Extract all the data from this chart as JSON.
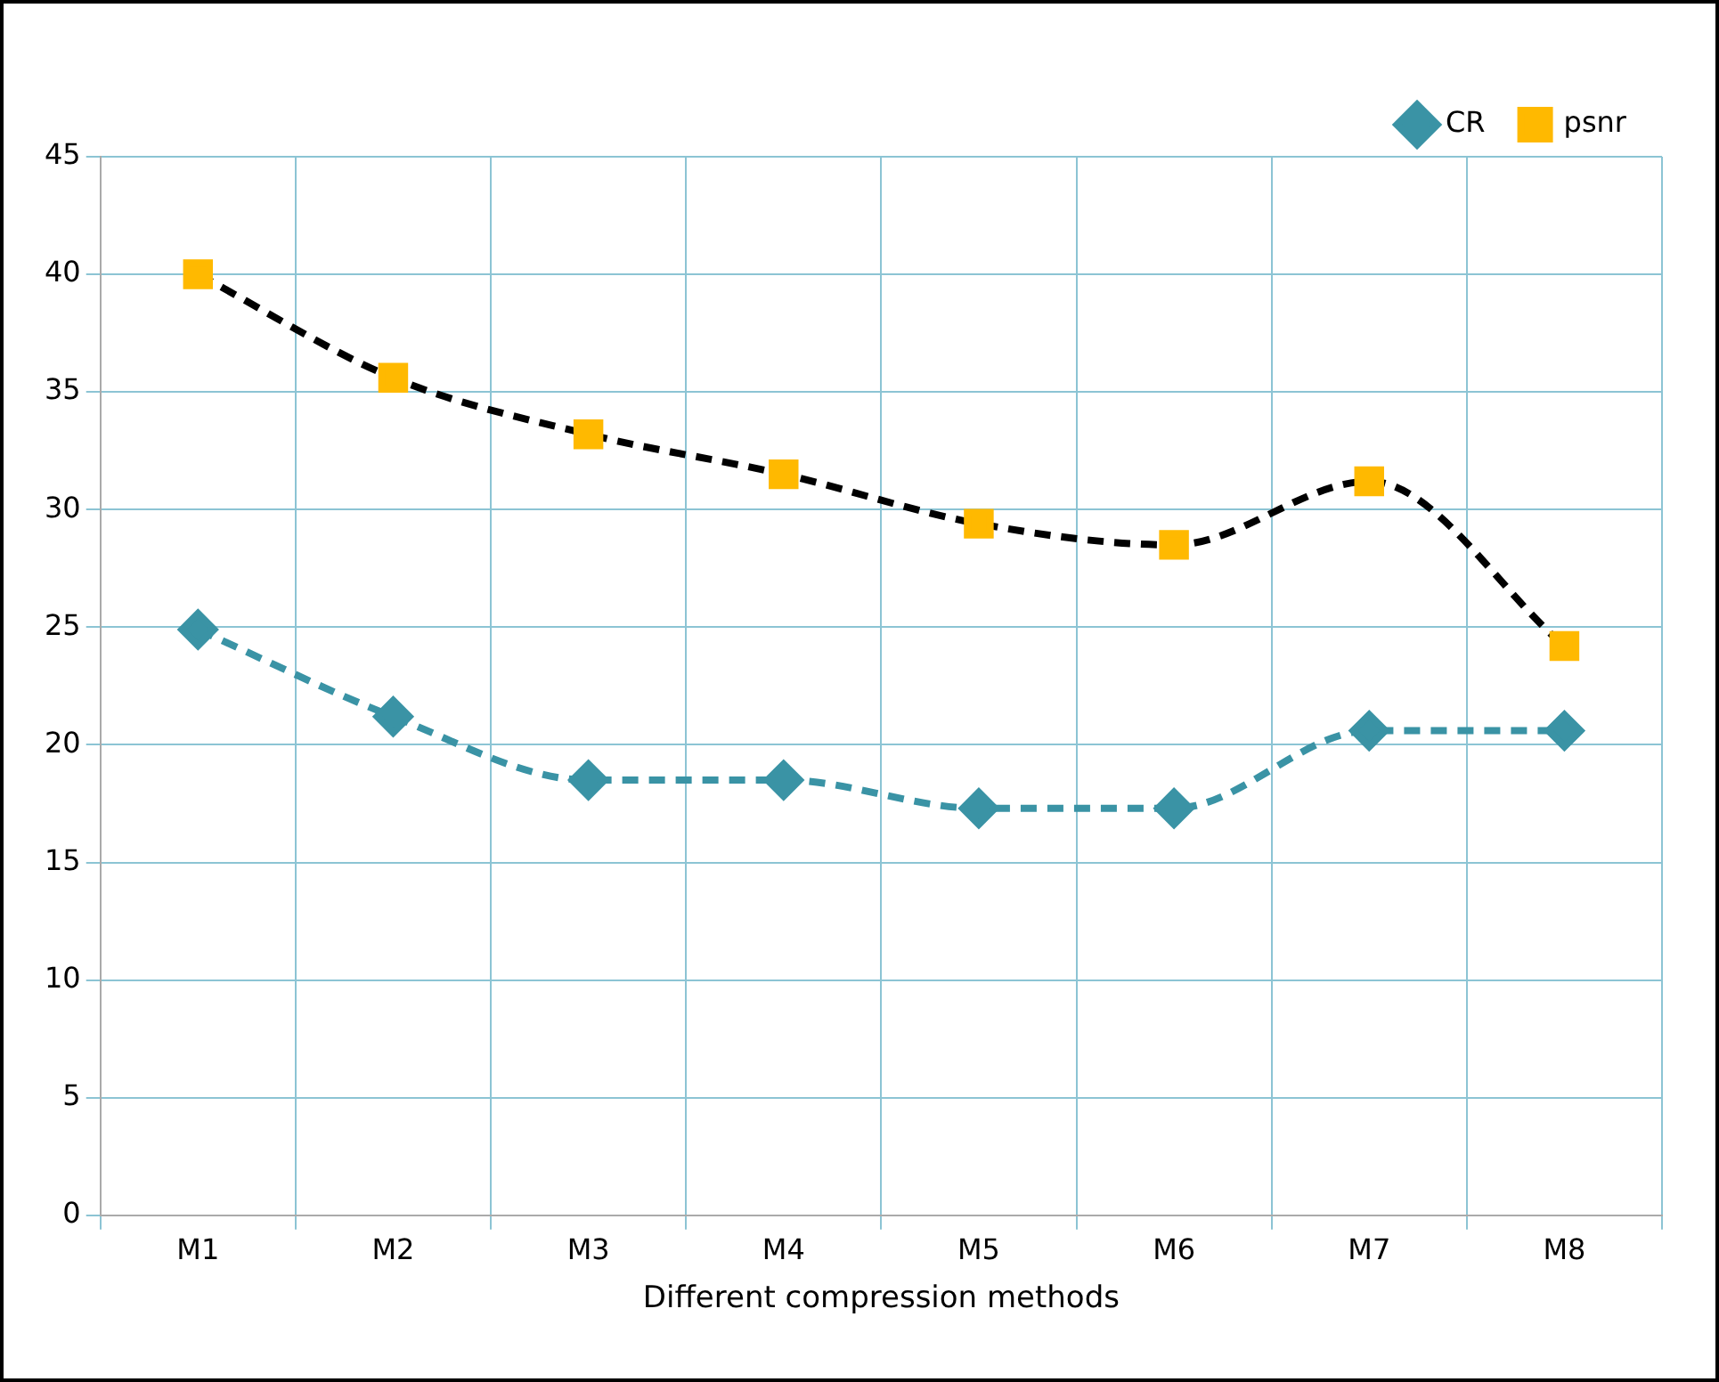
{
  "chart_data": {
    "type": "line",
    "xlabel": "Different compression methods",
    "categories": [
      "M1",
      "M2",
      "M3",
      "M4",
      "M5",
      "M6",
      "M7",
      "M8"
    ],
    "series": [
      {
        "name": "CR",
        "color": "#3a93a5",
        "marker": "diamond",
        "values": [
          24.9,
          21.2,
          18.5,
          18.5,
          17.3,
          17.3,
          20.6,
          20.6
        ]
      },
      {
        "name": "psnr",
        "color": "#000000",
        "marker": "square",
        "colors": [
          "#ffb900",
          "#ffb900",
          "#ffb900",
          "#ffb900",
          "#ffb900",
          "#ffb900",
          "#ffb900",
          "#ffb900"
        ],
        "values": [
          40,
          35.6,
          33.2,
          31.5,
          29.4,
          28.5,
          31.2,
          24.2
        ]
      }
    ],
    "ylim": [
      0,
      45
    ],
    "yticks": [
      0,
      5,
      10,
      15,
      20,
      25,
      30,
      35,
      40,
      45
    ],
    "grid": true,
    "legend": "top right",
    "line_style": "dashed"
  }
}
